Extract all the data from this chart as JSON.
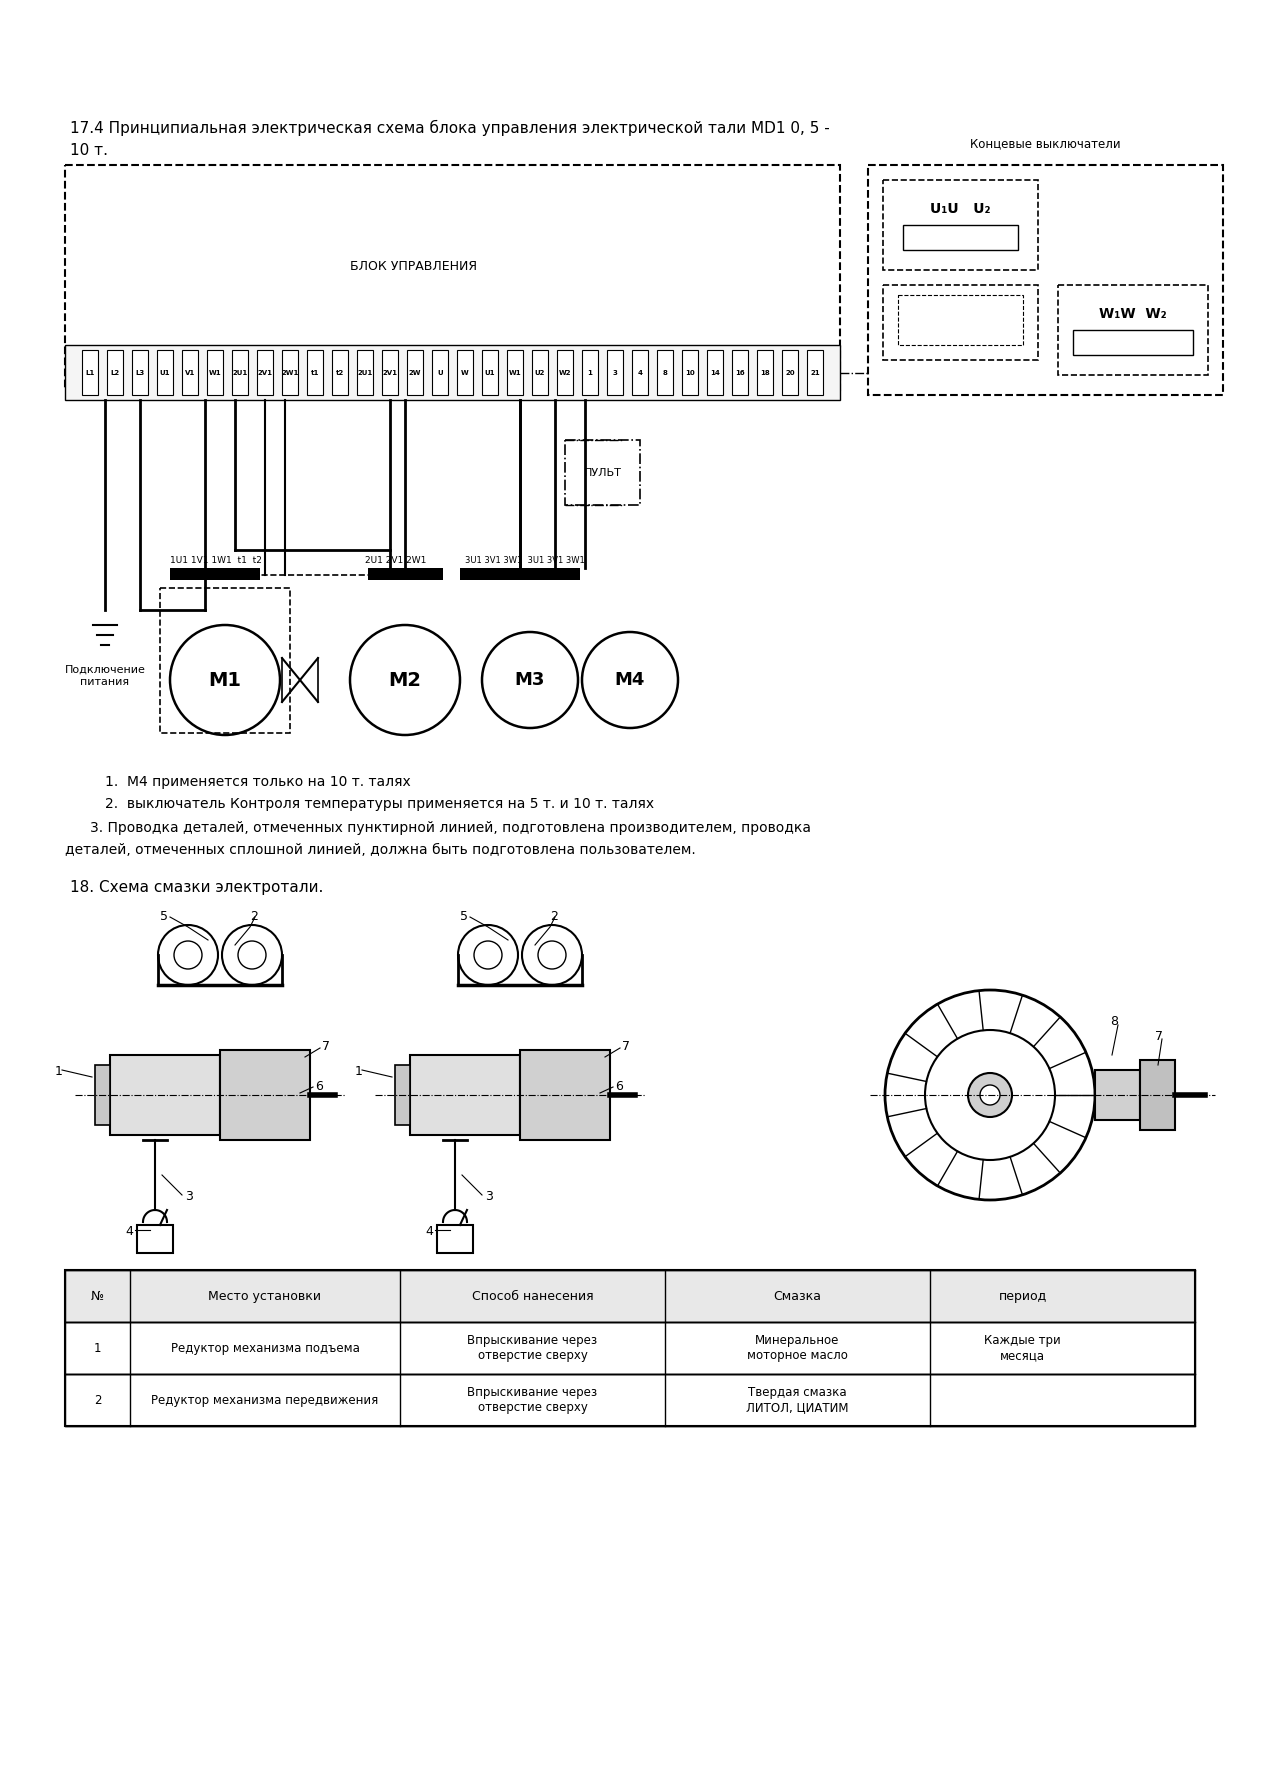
{
  "title_line1": "17.4 Принципиальная электрическая схема блока управления электрической тали MD1 0, 5 -",
  "title_line2": "10 т.",
  "blok_label": "БЛОК УПРАВЛЕНИЯ",
  "koncevye_label": "Концевые выключатели",
  "pult_label": "ПУЛЬТ",
  "podkl_label": "Подключение\nпитания",
  "note1": "1.  M4 применяется только на 10 т. талях",
  "note2": "2.  выключатель Контроля температуры применяется на 5 т. и 10 т. талях",
  "note3": "3. Проводка деталей, отмеченных пунктирной линией, подготовлена производителем, проводка",
  "note3b": "деталей, отмеченных сплошной линией, должна быть подготовлена пользователем.",
  "section18": "18. Схема смазки электротали.",
  "table_headers": [
    "№",
    "Место установки",
    "Способ нанесения",
    "Смазка",
    "период"
  ],
  "table_row1": [
    "1",
    "Редуктор механизма подъема",
    "Впрыскивание через\nотверстие сверху",
    "Минеральное\nмоторное масло",
    "Каждые три\nмесяца"
  ],
  "table_row2": [
    "2",
    "Редуктор механизма передвижения",
    "Впрыскивание через\nотверстие сверху",
    "Твердая смазка\nЛИТОЛ, ЦИАТИМ",
    ""
  ],
  "bg_color": "#ffffff"
}
